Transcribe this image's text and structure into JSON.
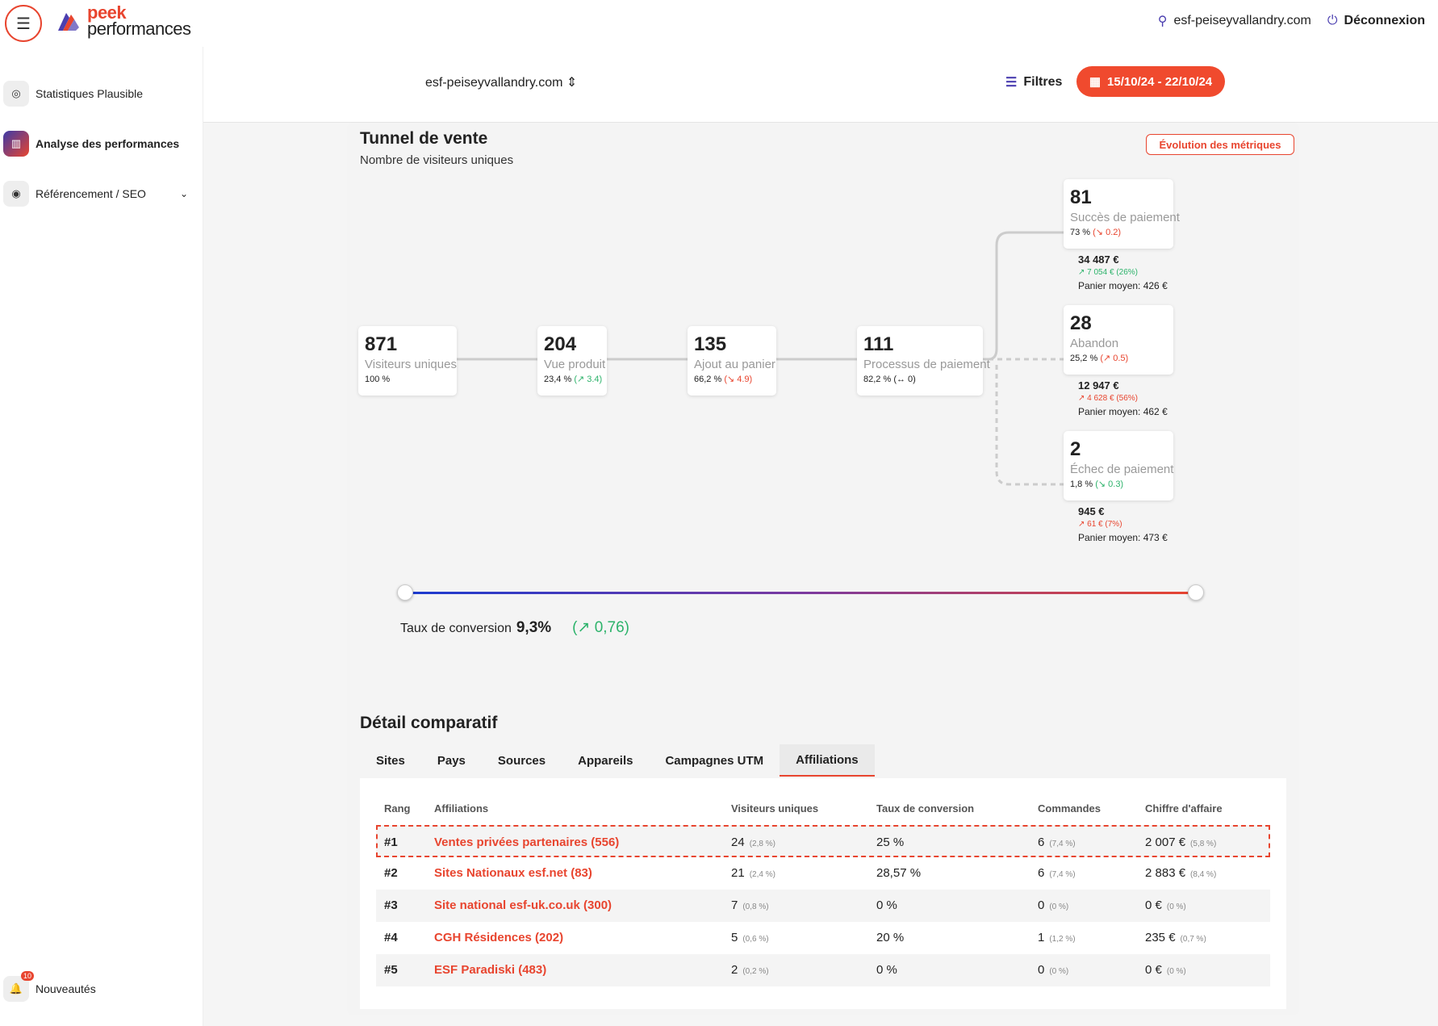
{
  "header": {
    "logo_top": "peek",
    "logo_bottom": "performances",
    "user_domain": "esf-peiseyvallandry.com",
    "logout_label": "Déconnexion"
  },
  "sidebar": {
    "items": [
      {
        "label": "Statistiques Plausible"
      },
      {
        "label": "Analyse des performances"
      },
      {
        "label": "Référencement / SEO"
      }
    ],
    "news_label": "Nouveautés",
    "news_badge": "10"
  },
  "filterbar": {
    "site": "esf-peiseyvallandry.com",
    "filters_label": "Filtres",
    "date_range": "15/10/24 - 22/10/24"
  },
  "funnel": {
    "title": "Tunnel de vente",
    "subtitle": "Nombre de visiteurs uniques",
    "evolution_button": "Évolution des métriques",
    "steps": [
      {
        "value": "871",
        "label": "Visiteurs uniques",
        "pct": "100 %",
        "delta": ""
      },
      {
        "value": "204",
        "label": "Vue produit",
        "pct": "23,4 %",
        "delta": "(↗ 3.4)"
      },
      {
        "value": "135",
        "label": "Ajout au panier",
        "pct": "66,2 %",
        "delta": "(↘ 4.9)"
      },
      {
        "value": "111",
        "label": "Processus de paiement",
        "pct": "82,2 %",
        "delta": "(↔ 0)"
      }
    ],
    "outcomes": [
      {
        "value": "81",
        "label": "Succès de paiement",
        "pct": "73 %",
        "delta": "(↘ 0.2)",
        "amount": "34 487 €",
        "amount_delta": "↗ 7 054 €",
        "amount_delta_pct": "(26%)",
        "basket": "Panier moyen: 426 €"
      },
      {
        "value": "28",
        "label": "Abandon",
        "pct": "25,2 %",
        "delta": "(↗ 0.5)",
        "amount": "12 947 €",
        "amount_delta": "↗ 4 628 €",
        "amount_delta_pct": "(56%)",
        "basket": "Panier moyen: 462 €"
      },
      {
        "value": "2",
        "label": "Échec de paiement",
        "pct": "1,8 %",
        "delta": "(↘ 0.3)",
        "amount": "945 €",
        "amount_delta": "↗ 61 €",
        "amount_delta_pct": "(7%)",
        "basket": "Panier moyen: 473 €"
      }
    ],
    "conversion_label": "Taux de conversion",
    "conversion_value": "9,3%",
    "conversion_delta": "(↗ 0,76)"
  },
  "detail": {
    "title": "Détail comparatif",
    "tabs": [
      "Sites",
      "Pays",
      "Sources",
      "Appareils",
      "Campagnes UTM",
      "Affiliations"
    ],
    "active_tab": "Affiliations",
    "columns": [
      "Rang",
      "Affiliations",
      "Visiteurs uniques",
      "Taux de conversion",
      "Commandes",
      "Chiffre d'affaire"
    ],
    "rows": [
      {
        "rank": "#1",
        "name": "Ventes privées partenaires (556)",
        "visitors": "24",
        "visitors_pct": "(2,8 %)",
        "conv": "25 %",
        "orders": "6",
        "orders_pct": "(7,4 %)",
        "revenue": "2 007 €",
        "revenue_pct": "(5,8 %)"
      },
      {
        "rank": "#2",
        "name": "Sites Nationaux esf.net (83)",
        "visitors": "21",
        "visitors_pct": "(2,4 %)",
        "conv": "28,57 %",
        "orders": "6",
        "orders_pct": "(7,4 %)",
        "revenue": "2 883 €",
        "revenue_pct": "(8,4 %)"
      },
      {
        "rank": "#3",
        "name": "Site national esf-uk.co.uk (300)",
        "visitors": "7",
        "visitors_pct": "(0,8 %)",
        "conv": "0 %",
        "orders": "0",
        "orders_pct": "(0 %)",
        "revenue": "0 €",
        "revenue_pct": "(0 %)"
      },
      {
        "rank": "#4",
        "name": "CGH Résidences (202)",
        "visitors": "5",
        "visitors_pct": "(0,6 %)",
        "conv": "20 %",
        "orders": "1",
        "orders_pct": "(1,2 %)",
        "revenue": "235 €",
        "revenue_pct": "(0,7 %)"
      },
      {
        "rank": "#5",
        "name": "ESF Paradiski (483)",
        "visitors": "2",
        "visitors_pct": "(0,2 %)",
        "conv": "0 %",
        "orders": "0",
        "orders_pct": "(0 %)",
        "revenue": "0 €",
        "revenue_pct": "(0 %)"
      }
    ]
  },
  "colors": {
    "accent": "#e8452f",
    "brand_purple": "#4b3fb0",
    "up": "#2db36b"
  },
  "icons": {
    "menu": "hamburger-icon",
    "user": "user-icon",
    "logout": "power-icon",
    "filters": "sliders-icon",
    "calendar": "calendar-icon"
  }
}
